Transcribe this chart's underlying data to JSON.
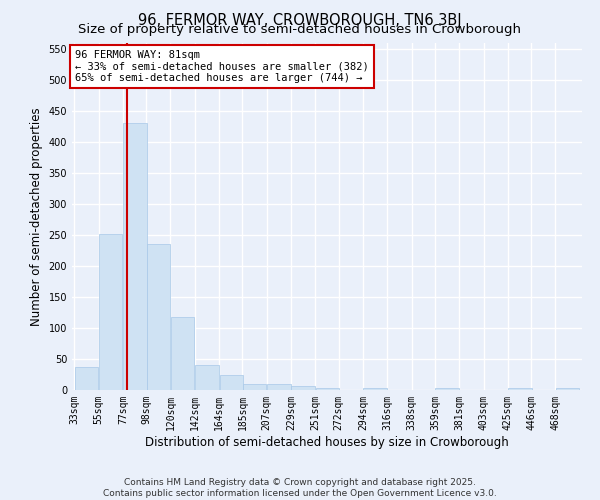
{
  "title": "96, FERMOR WAY, CROWBOROUGH, TN6 3BJ",
  "subtitle": "Size of property relative to semi-detached houses in Crowborough",
  "xlabel": "Distribution of semi-detached houses by size in Crowborough",
  "ylabel": "Number of semi-detached properties",
  "bins": [
    33,
    55,
    77,
    98,
    120,
    142,
    164,
    185,
    207,
    229,
    251,
    272,
    294,
    316,
    338,
    359,
    381,
    403,
    425,
    446,
    468
  ],
  "bin_labels": [
    "33sqm",
    "55sqm",
    "77sqm",
    "98sqm",
    "120sqm",
    "142sqm",
    "164sqm",
    "185sqm",
    "207sqm",
    "229sqm",
    "251sqm",
    "272sqm",
    "294sqm",
    "316sqm",
    "338sqm",
    "359sqm",
    "381sqm",
    "403sqm",
    "425sqm",
    "446sqm",
    "468sqm"
  ],
  "counts": [
    37,
    251,
    430,
    236,
    118,
    40,
    24,
    10,
    10,
    6,
    4,
    0,
    3,
    0,
    0,
    3,
    0,
    0,
    3,
    0,
    3
  ],
  "bar_color": "#cfe2f3",
  "bar_edge_color": "#a8c8e8",
  "vline_x": 81,
  "vline_color": "#cc0000",
  "annotation_line1": "96 FERMOR WAY: 81sqm",
  "annotation_line2": "← 33% of semi-detached houses are smaller (382)",
  "annotation_line3": "65% of semi-detached houses are larger (744) →",
  "annotation_box_color": "#ffffff",
  "annotation_box_edge": "#cc0000",
  "ylim": [
    0,
    560
  ],
  "yticks": [
    0,
    50,
    100,
    150,
    200,
    250,
    300,
    350,
    400,
    450,
    500,
    550
  ],
  "bg_color": "#eaf0fa",
  "grid_color": "#ffffff",
  "footer": "Contains HM Land Registry data © Crown copyright and database right 2025.\nContains public sector information licensed under the Open Government Licence v3.0.",
  "title_fontsize": 10.5,
  "subtitle_fontsize": 9.5,
  "xlabel_fontsize": 8.5,
  "ylabel_fontsize": 8.5,
  "tick_fontsize": 7,
  "annotation_fontsize": 7.5,
  "footer_fontsize": 6.5
}
